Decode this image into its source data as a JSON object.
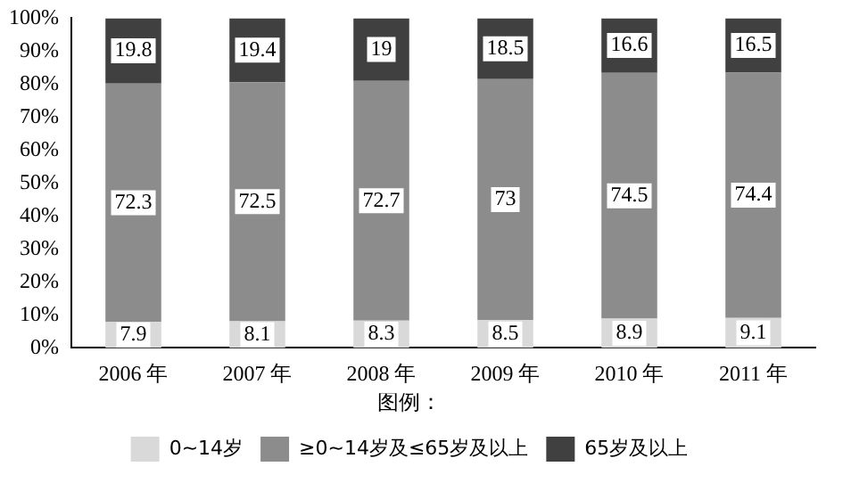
{
  "chart_data": {
    "type": "bar",
    "stacked": true,
    "categories": [
      "2006 年",
      "2007 年",
      "2008 年",
      "2009 年",
      "2010 年",
      "2011 年"
    ],
    "series": [
      {
        "name": "0~14岁",
        "color": "#d9d9d9",
        "values": [
          7.9,
          8.1,
          8.3,
          8.5,
          8.9,
          9.1
        ]
      },
      {
        "name": "≥0~14岁及≤65岁及以上",
        "color": "#8c8c8c",
        "values": [
          72.3,
          72.5,
          72.7,
          73,
          74.5,
          74.4
        ]
      },
      {
        "name": "65岁及以上",
        "color": "#404040",
        "values": [
          19.8,
          19.4,
          19,
          18.5,
          16.6,
          16.5
        ]
      }
    ],
    "ylim": [
      0,
      100
    ],
    "yticks": [
      {
        "value": 0,
        "label": "0%"
      },
      {
        "value": 10,
        "label": "10%"
      },
      {
        "value": 20,
        "label": "20%"
      },
      {
        "value": 30,
        "label": "30%"
      },
      {
        "value": 40,
        "label": "40%"
      },
      {
        "value": 50,
        "label": "50%"
      },
      {
        "value": 60,
        "label": "60%"
      },
      {
        "value": 70,
        "label": "70%"
      },
      {
        "value": 80,
        "label": "80%"
      },
      {
        "value": 90,
        "label": "90%"
      },
      {
        "value": 100,
        "label": "100%"
      }
    ],
    "grid": false,
    "legend": "bottom",
    "legend_title": "图例：",
    "data_labels": true
  }
}
